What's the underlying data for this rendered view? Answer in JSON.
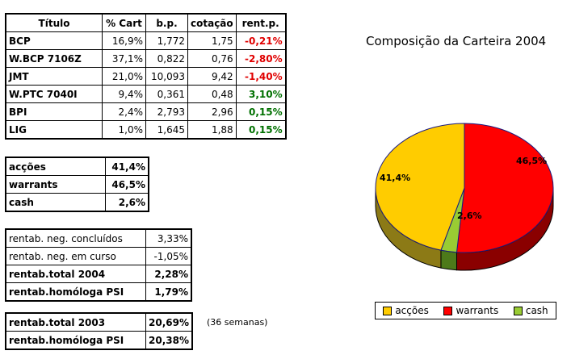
{
  "holdings": {
    "headers": [
      "Título",
      "% Cart",
      "b.p.",
      "cotação",
      "rent.p."
    ],
    "rows": [
      {
        "name": "BCP",
        "pct": "16,9%",
        "bp": "1,772",
        "price": "1,75",
        "rent": "-0,21%",
        "rent_color": "#e00000"
      },
      {
        "name": "W.BCP 7106Z",
        "pct": "37,1%",
        "bp": "0,822",
        "price": "0,76",
        "rent": "-2,80%",
        "rent_color": "#e00000"
      },
      {
        "name": "JMT",
        "pct": "21,0%",
        "bp": "10,093",
        "price": "9,42",
        "rent": "-1,40%",
        "rent_color": "#e00000"
      },
      {
        "name": "W.PTC 7040I",
        "pct": "9,4%",
        "bp": "0,361",
        "price": "0,48",
        "rent": "3,10%",
        "rent_color": "#007000"
      },
      {
        "name": "BPI",
        "pct": "2,4%",
        "bp": "2,793",
        "price": "2,96",
        "rent": "0,15%",
        "rent_color": "#007000"
      },
      {
        "name": "LIG",
        "pct": "1,0%",
        "bp": "1,645",
        "price": "1,88",
        "rent": "0,15%",
        "rent_color": "#007000"
      }
    ]
  },
  "allocation": {
    "rows": [
      {
        "label": "acções",
        "value": "41,4%"
      },
      {
        "label": "warrants",
        "value": "46,5%"
      },
      {
        "label": "cash",
        "value": "2,6%"
      }
    ]
  },
  "returns": {
    "rows": [
      {
        "label": "rentab. neg. concluídos",
        "value": "3,33%"
      },
      {
        "label": "rentab. neg. em curso",
        "value": "-1,05%"
      },
      {
        "label": "rentab.total 2004",
        "value": "2,28%"
      },
      {
        "label": "rentab.homóloga PSI",
        "value": "1,79%"
      }
    ]
  },
  "returns_2003": {
    "rows": [
      {
        "label": "rentab.total 2003",
        "value": "20,69%"
      },
      {
        "label": "rentab.homóloga PSI",
        "value": "20,38%"
      }
    ],
    "note": "(36 semanas)"
  },
  "chart_data": {
    "type": "pie",
    "title": "Composição da Carteira 2004",
    "slices": [
      {
        "label": "acções",
        "value": 41.4,
        "display": "41,4%",
        "color": "#ffcc00",
        "side_color": "#8c7a16"
      },
      {
        "label": "warrants",
        "value": 46.5,
        "display": "46,5%",
        "color": "#ff0000",
        "side_color": "#8a0000"
      },
      {
        "label": "cash",
        "value": 2.6,
        "display": "2,6%",
        "color": "#99cc33",
        "side_color": "#4d7a1a"
      }
    ],
    "legend_position": "bottom"
  }
}
